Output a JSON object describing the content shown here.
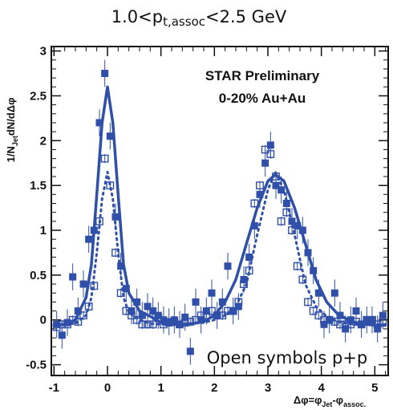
{
  "chart_data": {
    "type": "scatter",
    "title_main": "1.0<p",
    "title_sub": "t,assoc",
    "title_tail": "<2.5 GeV",
    "ylabel_a": "1/N",
    "ylabel_b": "Jet",
    "ylabel_c": "dN/dΔφ",
    "xlabel_a": "Δφ=φ",
    "xlabel_b": "Jet",
    "xlabel_c": "-φ",
    "xlabel_d": "assoc.",
    "annotation_1": "STAR Preliminary",
    "annotation_2": "0-20% Au+Au",
    "legend_note": "Open symbols p+p",
    "xlim": [
      -1.05,
      5.25
    ],
    "ylim": [
      -0.62,
      3.05
    ],
    "x_ticks": [
      -1,
      0,
      1,
      2,
      3,
      4,
      5
    ],
    "x_tick_labels": [
      "-1",
      "0",
      "1",
      "2",
      "3",
      "4",
      "5"
    ],
    "y_ticks": [
      -0.5,
      0,
      0.5,
      1,
      1.5,
      2,
      2.5,
      3
    ],
    "y_tick_labels": [
      "-0.5",
      "0",
      "0.5",
      "1",
      "1.5",
      "2",
      "2.5",
      "3"
    ],
    "color": "#2f4fa8",
    "series": [
      {
        "marker": "filled-square",
        "x": [
          -0.95,
          -0.85,
          -0.75,
          -0.65,
          -0.55,
          -0.45,
          -0.35,
          -0.25,
          -0.15,
          -0.05,
          0.05,
          0.15,
          0.25,
          0.35,
          0.45,
          0.55,
          0.65,
          0.75,
          0.85,
          0.95,
          1.05,
          1.15,
          1.25,
          1.35,
          1.45,
          1.55,
          1.65,
          1.75,
          1.85,
          1.95,
          2.05,
          2.15,
          2.25,
          2.35,
          2.45,
          2.55,
          2.65,
          2.75,
          2.85,
          2.95,
          3.05,
          3.15,
          3.25,
          3.35,
          3.45,
          3.55,
          3.65,
          3.75,
          3.85,
          3.95,
          4.05,
          4.15,
          4.25,
          4.35,
          4.45,
          4.55,
          4.65,
          4.75,
          4.85,
          4.95,
          5.05,
          5.15
        ],
        "y": [
          -0.05,
          -0.17,
          -0.03,
          0.48,
          0.1,
          0.4,
          0.9,
          1.0,
          2.2,
          2.75,
          2.05,
          1.15,
          0.6,
          0.35,
          0.1,
          0.2,
          0.05,
          0.15,
          0.1,
          0.05,
          0.0,
          -0.02,
          0.0,
          -0.05,
          0.03,
          -0.35,
          0.2,
          0.0,
          0.1,
          0.3,
          0.05,
          0.2,
          0.6,
          0.1,
          0.15,
          0.45,
          0.7,
          1.05,
          1.4,
          1.75,
          1.95,
          1.5,
          1.45,
          1.3,
          1.1,
          1.05,
          1.0,
          0.75,
          0.55,
          0.3,
          -0.05,
          0.0,
          0.3,
          0.05,
          -0.1,
          0.0,
          0.1,
          -0.05,
          0.0,
          0.0,
          -0.1,
          0.05
        ],
        "errors": [
          0.15,
          0.15,
          0.15,
          0.15,
          0.15,
          0.15,
          0.15,
          0.15,
          0.15,
          0.15,
          0.15,
          0.15,
          0.15,
          0.15,
          0.15,
          0.15,
          0.15,
          0.15,
          0.15,
          0.15,
          0.15,
          0.15,
          0.15,
          0.15,
          0.15,
          0.15,
          0.15,
          0.15,
          0.15,
          0.15,
          0.15,
          0.15,
          0.15,
          0.15,
          0.15,
          0.15,
          0.15,
          0.15,
          0.15,
          0.15,
          0.15,
          0.15,
          0.15,
          0.15,
          0.15,
          0.15,
          0.15,
          0.15,
          0.15,
          0.15,
          0.15,
          0.15,
          0.15,
          0.15,
          0.15,
          0.15,
          0.15,
          0.15,
          0.15,
          0.15,
          0.15,
          0.15
        ]
      },
      {
        "marker": "open-square",
        "x": [
          -0.95,
          -0.85,
          -0.75,
          -0.65,
          -0.55,
          -0.45,
          -0.35,
          -0.25,
          -0.15,
          -0.05,
          0.05,
          0.15,
          0.25,
          0.35,
          0.45,
          0.55,
          0.65,
          0.75,
          0.85,
          0.95,
          1.05,
          1.15,
          1.25,
          1.35,
          1.45,
          1.55,
          1.65,
          1.75,
          1.85,
          1.95,
          2.05,
          2.15,
          2.25,
          2.35,
          2.45,
          2.55,
          2.65,
          2.75,
          2.85,
          2.95,
          3.05,
          3.15,
          3.25,
          3.35,
          3.45,
          3.55,
          3.65,
          3.75,
          3.85,
          3.95,
          4.05,
          4.15,
          4.25,
          4.35,
          4.45,
          4.55,
          4.65,
          4.75,
          4.85,
          4.95,
          5.05,
          5.15
        ],
        "y": [
          -0.08,
          -0.05,
          -0.05,
          0.0,
          -0.02,
          0.05,
          0.15,
          0.38,
          1.1,
          1.8,
          1.5,
          0.75,
          0.3,
          0.1,
          0.05,
          0.0,
          -0.05,
          -0.05,
          -0.05,
          0.02,
          -0.05,
          -0.03,
          -0.02,
          -0.05,
          -0.03,
          -0.02,
          0.0,
          0.05,
          0.05,
          0.1,
          0.05,
          0.05,
          0.1,
          0.1,
          0.2,
          0.4,
          0.55,
          1.3,
          1.5,
          1.9,
          1.85,
          1.6,
          1.1,
          1.2,
          1.0,
          0.6,
          0.45,
          0.2,
          0.1,
          0.05,
          0.0,
          0.0,
          -0.02,
          -0.05,
          -0.05,
          -0.05,
          -0.02,
          -0.05,
          0.0,
          0.0,
          -0.05,
          -0.02
        ],
        "errors": [
          0.05,
          0.05,
          0.05,
          0.05,
          0.05,
          0.05,
          0.05,
          0.05,
          0.05,
          0.05,
          0.05,
          0.05,
          0.05,
          0.05,
          0.05,
          0.05,
          0.05,
          0.05,
          0.05,
          0.05,
          0.05,
          0.05,
          0.05,
          0.05,
          0.05,
          0.05,
          0.05,
          0.05,
          0.05,
          0.05,
          0.05,
          0.05,
          0.05,
          0.05,
          0.05,
          0.05,
          0.05,
          0.05,
          0.05,
          0.05,
          0.05,
          0.05,
          0.05,
          0.05,
          0.05,
          0.05,
          0.05,
          0.05,
          0.05,
          0.05,
          0.05,
          0.05,
          0.05,
          0.05,
          0.05,
          0.05,
          0.05,
          0.05,
          0.05,
          0.05,
          0.05,
          0.05
        ]
      },
      {
        "style": "solid-line",
        "x": [
          -1.0,
          -0.8,
          -0.6,
          -0.4,
          -0.3,
          -0.2,
          -0.1,
          0.0,
          0.1,
          0.2,
          0.3,
          0.4,
          0.6,
          0.8,
          1.0,
          1.2,
          1.4,
          1.6,
          1.8,
          2.0,
          2.2,
          2.4,
          2.6,
          2.8,
          3.0,
          3.14,
          3.3,
          3.5,
          3.7,
          3.9,
          4.1,
          4.3,
          4.5,
          4.7,
          5.0,
          5.2
        ],
        "y": [
          -0.06,
          -0.05,
          0.0,
          0.25,
          0.62,
          1.4,
          2.2,
          2.6,
          2.2,
          1.4,
          0.62,
          0.3,
          0.1,
          0.04,
          -0.03,
          -0.05,
          -0.05,
          -0.04,
          -0.02,
          0.05,
          0.2,
          0.45,
          0.85,
          1.25,
          1.55,
          1.62,
          1.55,
          1.25,
          0.85,
          0.45,
          0.2,
          0.07,
          0.0,
          -0.04,
          -0.06,
          -0.06
        ]
      },
      {
        "style": "dotted-line",
        "x": [
          -1.0,
          -0.8,
          -0.6,
          -0.4,
          -0.3,
          -0.2,
          -0.1,
          0.0,
          0.1,
          0.2,
          0.3,
          0.4,
          0.6,
          0.8,
          1.0,
          1.2,
          1.4,
          1.6,
          1.8,
          2.0,
          2.2,
          2.4,
          2.6,
          2.8,
          3.0,
          3.14,
          3.3,
          3.5,
          3.7,
          3.9,
          4.1,
          4.3,
          4.5,
          4.7,
          5.0,
          5.2
        ],
        "y": [
          -0.05,
          -0.05,
          -0.04,
          0.05,
          0.25,
          0.75,
          1.35,
          1.65,
          1.35,
          0.75,
          0.25,
          0.08,
          0.0,
          -0.04,
          -0.05,
          -0.05,
          -0.05,
          -0.04,
          -0.03,
          0.0,
          0.05,
          0.15,
          0.4,
          0.95,
          1.45,
          1.65,
          1.45,
          0.95,
          0.4,
          0.15,
          0.04,
          -0.02,
          -0.04,
          -0.05,
          -0.05,
          -0.05
        ]
      }
    ]
  }
}
